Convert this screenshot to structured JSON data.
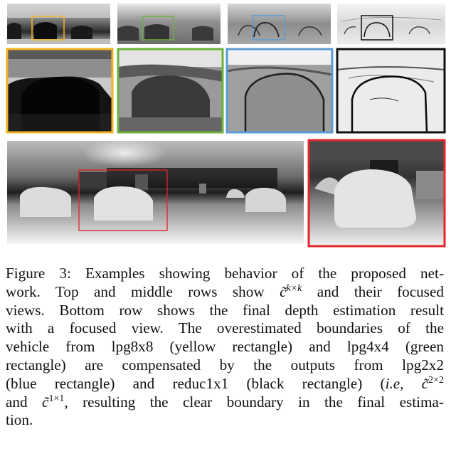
{
  "colors": {
    "yellow": "#f0b323",
    "green": "#6bb23a",
    "blue": "#5b9bd5",
    "black": "#111111",
    "red": "#e3242b"
  },
  "caption": {
    "label": "Figure 3:",
    "line1": "Examples showing behavior of the proposed net-",
    "line2a": "work.  Top and middle rows show ",
    "line2b": " and their focused",
    "line3": "views.  Bottom row shows the final depth estimation result",
    "line4": "with a focused view.  The overestimated boundaries of the",
    "line5": "vehicle from lpg8x8 (yellow rectangle) and lpg4x4 (green",
    "line6": "rectangle) are compensated by the outputs from lpg2x2",
    "line7a": "(blue rectangle) and reduc1x1 (black rectangle) (",
    "line7b": "i.e,",
    "line8a": "and ",
    "line8b": ", resulting the clear boundary in the final estima-",
    "line9": "tion.",
    "sym_c": "c̃",
    "sup_kxk": "k×k",
    "sup_2x2": "2×2",
    "sup_1x1": "1×1"
  }
}
